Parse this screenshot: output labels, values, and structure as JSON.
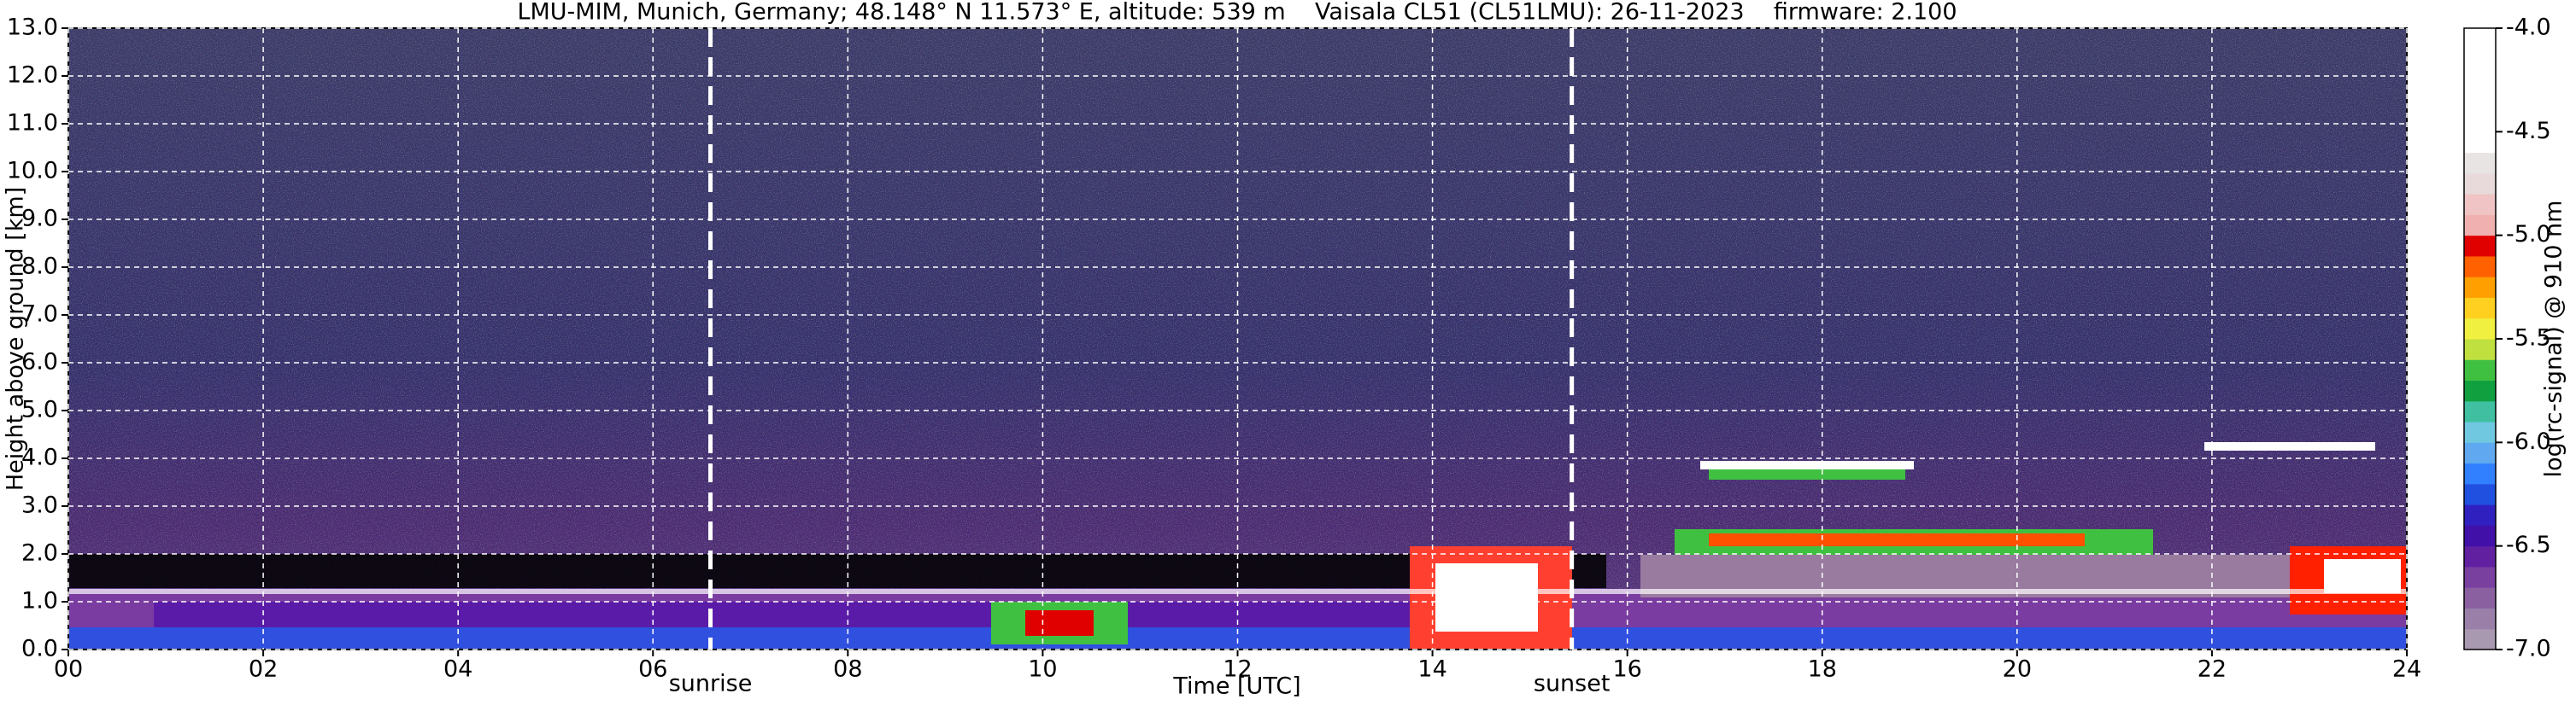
{
  "chart_data": {
    "type": "heatmap",
    "title": "LMU-MIM, Munich, Germany; 48.148° N 11.573° E, altitude: 539 m    Vaisala CL51 (CL51LMU): 26-11-2023    firmware: 2.100",
    "x_label": "Time [UTC]",
    "y_label": "Height above ground [km]",
    "xlim": [
      0,
      24
    ],
    "xticks": [
      {
        "value": 0,
        "label": "00"
      },
      {
        "value": 2,
        "label": "02"
      },
      {
        "value": 4,
        "label": "04"
      },
      {
        "value": 6,
        "label": "06"
      },
      {
        "value": 8,
        "label": "08"
      },
      {
        "value": 10,
        "label": "10"
      },
      {
        "value": 12,
        "label": "12"
      },
      {
        "value": 14,
        "label": "14"
      },
      {
        "value": 16,
        "label": "16"
      },
      {
        "value": 18,
        "label": "18"
      },
      {
        "value": 20,
        "label": "20"
      },
      {
        "value": 22,
        "label": "22"
      },
      {
        "value": 24,
        "label": "24"
      }
    ],
    "ylim": [
      0,
      13
    ],
    "yticks": [
      {
        "value": 0,
        "label": "0.0"
      },
      {
        "value": 1,
        "label": "1.0"
      },
      {
        "value": 2,
        "label": "2.0"
      },
      {
        "value": 3,
        "label": "3.0"
      },
      {
        "value": 4,
        "label": "4.0"
      },
      {
        "value": 5,
        "label": "5.0"
      },
      {
        "value": 6,
        "label": "6.0"
      },
      {
        "value": 7,
        "label": "7.0"
      },
      {
        "value": 8,
        "label": "8.0"
      },
      {
        "value": 9,
        "label": "9.0"
      },
      {
        "value": 10,
        "label": "10.0"
      },
      {
        "value": 11,
        "label": "11.0"
      },
      {
        "value": 12,
        "label": "12.0"
      },
      {
        "value": 13,
        "label": "13.0"
      }
    ],
    "grid": true,
    "annotations": [
      {
        "text": "sunrise",
        "x": 6.59
      },
      {
        "text": "sunset",
        "x": 15.43
      }
    ],
    "colorbar": {
      "label": "log(rc-signal) @ 910 nm",
      "lim": [
        -7.0,
        -4.0
      ],
      "ticks": [
        {
          "value": -7.0,
          "label": "-7.0"
        },
        {
          "value": -6.5,
          "label": "-6.5"
        },
        {
          "value": -6.0,
          "label": "-6.0"
        },
        {
          "value": -5.5,
          "label": "-5.5"
        },
        {
          "value": -5.0,
          "label": "-5.0"
        },
        {
          "value": -4.5,
          "label": "-4.5"
        },
        {
          "value": -4.0,
          "label": "-4.0"
        }
      ],
      "colors": [
        "#a898b0",
        "#9a80a8",
        "#8a60a0",
        "#7a40a0",
        "#6020a0",
        "#4010a8",
        "#3020c0",
        "#2050e0",
        "#3080ff",
        "#60a8f0",
        "#70c8e0",
        "#40c0a0",
        "#10a040",
        "#40c040",
        "#c0e040",
        "#f0f040",
        "#ffd020",
        "#ffa000",
        "#ff6000",
        "#e00000",
        "#f0b0b0",
        "#f0c4c4",
        "#e8dada",
        "#e8e4e4",
        "#ffffff",
        "#ffffff",
        "#ffffff",
        "#ffffff",
        "#ffffff",
        "#ffffff"
      ]
    }
  }
}
